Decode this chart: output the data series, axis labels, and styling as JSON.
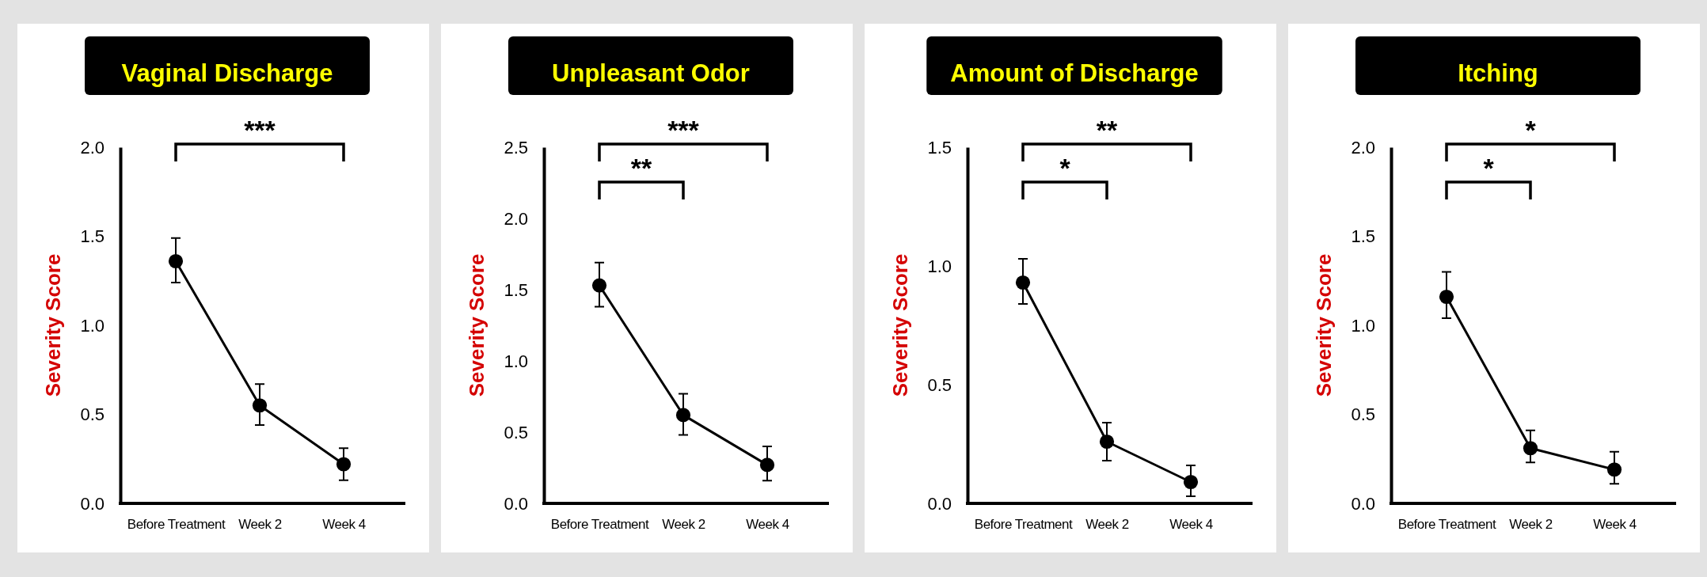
{
  "chart_data": [
    {
      "type": "line",
      "title": "Vaginal Discharge",
      "ylabel": "Severity Score",
      "categories": [
        "Before Treatment",
        "Week 2",
        "Week 4"
      ],
      "series": [
        {
          "color": "#000000",
          "values": [
            1.36,
            0.55,
            0.22
          ],
          "errors": [
            [
              1.24,
              1.49
            ],
            [
              0.44,
              0.67
            ],
            [
              0.13,
              0.31
            ]
          ]
        }
      ],
      "ylim": [
        0,
        2.0
      ],
      "yticks": [
        {
          "value": 0,
          "label": "0.0"
        },
        {
          "value": 0.5,
          "label": "0.5"
        },
        {
          "value": 1,
          "label": "1.0"
        },
        {
          "value": 1.5,
          "label": "1.5"
        },
        {
          "value": 2,
          "label": "2.0"
        }
      ],
      "marker": "circle",
      "grid": false,
      "annotations": [
        "***"
      ]
    },
    {
      "type": "line",
      "title": "Unpleasant Odor",
      "ylabel": "Severity Score",
      "categories": [
        "Before Treatment",
        "Week 2",
        "Week 4"
      ],
      "series": [
        {
          "color": "#000000",
          "values": [
            1.53,
            0.62,
            0.27
          ],
          "errors": [
            [
              1.38,
              1.69
            ],
            [
              0.48,
              0.77
            ],
            [
              0.16,
              0.4
            ]
          ]
        }
      ],
      "ylim": [
        0,
        2.5
      ],
      "yticks": [
        {
          "value": 0,
          "label": "0.0"
        },
        {
          "value": 0.5,
          "label": "0.5"
        },
        {
          "value": 1,
          "label": "1.0"
        },
        {
          "value": 1.5,
          "label": "1.5"
        },
        {
          "value": 2,
          "label": "2.0"
        },
        {
          "value": 2.5,
          "label": "2.5"
        }
      ],
      "marker": "circle",
      "grid": false,
      "annotations": [
        "***",
        "**"
      ]
    },
    {
      "type": "line",
      "title": "Amount of Discharge",
      "ylabel": "Severity Score",
      "categories": [
        "Before Treatment",
        "Week 2",
        "Week 4"
      ],
      "series": [
        {
          "color": "#000000",
          "values": [
            0.93,
            0.26,
            0.09
          ],
          "errors": [
            [
              0.84,
              1.03
            ],
            [
              0.18,
              0.34
            ],
            [
              0.03,
              0.16
            ]
          ]
        }
      ],
      "ylim": [
        0,
        1.5
      ],
      "yticks": [
        {
          "value": 0,
          "label": "0.0"
        },
        {
          "value": 0.5,
          "label": "0.5"
        },
        {
          "value": 1,
          "label": "1.0"
        },
        {
          "value": 1.5,
          "label": "1.5"
        }
      ],
      "marker": "circle",
      "grid": false,
      "annotations": [
        "**",
        "*"
      ]
    },
    {
      "type": "line",
      "title": "Itching",
      "ylabel": "Severity Score",
      "categories": [
        "Before Treatment",
        "Week 2",
        "Week 4"
      ],
      "series": [
        {
          "color": "#000000",
          "values": [
            1.16,
            0.31,
            0.19
          ],
          "errors": [
            [
              1.04,
              1.3
            ],
            [
              0.23,
              0.41
            ],
            [
              0.11,
              0.29
            ]
          ]
        }
      ],
      "ylim": [
        0,
        2.0
      ],
      "yticks": [
        {
          "value": 0,
          "label": "0.0"
        },
        {
          "value": 0.5,
          "label": "0.5"
        },
        {
          "value": 1,
          "label": "1.0"
        },
        {
          "value": 1.5,
          "label": "1.5"
        },
        {
          "value": 2,
          "label": "2.0"
        }
      ],
      "marker": "circle",
      "grid": false,
      "annotations": [
        "*",
        "*"
      ]
    }
  ]
}
